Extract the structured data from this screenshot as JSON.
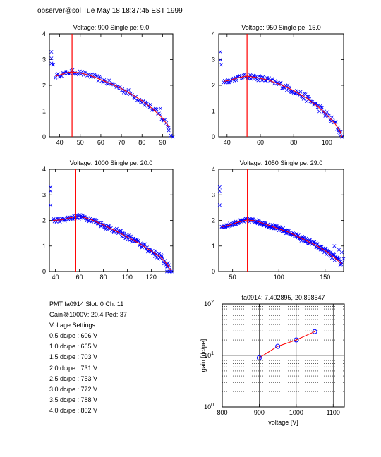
{
  "header": "observer@sol  Tue May 18 18:37:45 EST 1999",
  "info": {
    "pmt_line": "PMT fa0914 Slot: 0 Ch: 11",
    "gain_line": "Gain@1000V: 20.4 Ped: 37",
    "settings_title": "Voltage Settings",
    "settings": [
      "0.5 dc/pe : 606 V",
      "1.0 dc/pe : 665 V",
      "1.5 dc/pe : 703 V",
      "2.0 dc/pe : 731 V",
      "2.5 dc/pe : 753 V",
      "3.0 dc/pe : 772 V",
      "3.5 dc/pe : 788 V",
      "4.0 dc/pe : 802 V"
    ]
  },
  "colors": {
    "data": "#0000ff",
    "fit": "#ff0000",
    "axis": "#000000"
  },
  "chart_data": [
    {
      "type": "scatter",
      "title": "Voltage: 900 Single pe: 9.0",
      "xlabel": "",
      "ylabel": "",
      "xlim": [
        35,
        95
      ],
      "ylim": [
        0,
        4
      ],
      "xticks": [
        40,
        50,
        60,
        70,
        80,
        90
      ],
      "yticks": [
        0,
        1,
        2,
        3,
        4
      ],
      "peak_line_x": 46,
      "fit": [
        [
          38,
          2.35
        ],
        [
          40,
          2.4
        ],
        [
          43,
          2.48
        ],
        [
          46,
          2.52
        ],
        [
          50,
          2.48
        ],
        [
          55,
          2.38
        ],
        [
          60,
          2.22
        ],
        [
          65,
          2.06
        ],
        [
          70,
          1.87
        ],
        [
          75,
          1.65
        ],
        [
          80,
          1.4
        ],
        [
          85,
          1.1
        ],
        [
          90,
          0.72
        ],
        [
          93,
          0.4
        ]
      ],
      "outliers": [
        [
          36,
          3.3
        ],
        [
          36,
          3.05
        ],
        [
          36,
          2.85
        ],
        [
          36.5,
          2.8
        ],
        [
          37,
          2.8
        ],
        [
          89,
          1.1
        ],
        [
          93,
          0.25
        ],
        [
          94,
          0.05
        ],
        [
          95,
          0.0
        ]
      ],
      "noise": 0.07
    },
    {
      "type": "scatter",
      "title": "Voltage: 950 Single pe: 15.0",
      "xlabel": "",
      "ylabel": "",
      "xlim": [
        35,
        110
      ],
      "ylim": [
        0,
        4
      ],
      "xticks": [
        40,
        60,
        80,
        100
      ],
      "yticks": [
        0,
        1,
        2,
        3,
        4
      ],
      "peak_line_x": 52,
      "fit": [
        [
          38,
          2.15
        ],
        [
          42,
          2.2
        ],
        [
          47,
          2.3
        ],
        [
          52,
          2.36
        ],
        [
          58,
          2.3
        ],
        [
          65,
          2.2
        ],
        [
          72,
          2.03
        ],
        [
          80,
          1.8
        ],
        [
          88,
          1.5
        ],
        [
          95,
          1.15
        ],
        [
          100,
          0.85
        ],
        [
          105,
          0.5
        ],
        [
          108,
          0.2
        ],
        [
          109,
          0.0
        ]
      ],
      "outliers": [
        [
          36,
          3.3
        ],
        [
          36,
          3.0
        ],
        [
          36.5,
          2.8
        ],
        [
          107,
          0.25
        ],
        [
          108,
          0.05
        ],
        [
          109,
          0.0
        ]
      ],
      "noise": 0.08
    },
    {
      "type": "scatter",
      "title": "Voltage: 1000 Single pe: 20.0",
      "xlabel": "",
      "ylabel": "",
      "xlim": [
        35,
        138
      ],
      "ylim": [
        0,
        4
      ],
      "xticks": [
        40,
        60,
        80,
        100,
        120
      ],
      "yticks": [
        0,
        1,
        2,
        3,
        4
      ],
      "peak_line_x": 57,
      "fit": [
        [
          38,
          2.0
        ],
        [
          45,
          2.02
        ],
        [
          52,
          2.1
        ],
        [
          57,
          2.15
        ],
        [
          63,
          2.13
        ],
        [
          70,
          2.03
        ],
        [
          80,
          1.82
        ],
        [
          90,
          1.6
        ],
        [
          100,
          1.35
        ],
        [
          110,
          1.1
        ],
        [
          120,
          0.8
        ],
        [
          128,
          0.55
        ],
        [
          133,
          0.3
        ],
        [
          136,
          0.05
        ]
      ],
      "outliers": [
        [
          36,
          3.3
        ],
        [
          36,
          3.15
        ],
        [
          36,
          2.6
        ],
        [
          133,
          0.0
        ],
        [
          135,
          0.0
        ],
        [
          137,
          0.0
        ]
      ],
      "noise": 0.07
    },
    {
      "type": "scatter",
      "title": "Voltage: 1050 Single pe: 29.0",
      "xlabel": "",
      "ylabel": "",
      "xlim": [
        35,
        170
      ],
      "ylim": [
        0,
        4
      ],
      "xticks": [
        50,
        100,
        150
      ],
      "yticks": [
        0,
        1,
        2,
        3,
        4
      ],
      "peak_line_x": 66,
      "fit": [
        [
          38,
          1.75
        ],
        [
          45,
          1.8
        ],
        [
          55,
          1.92
        ],
        [
          66,
          2.02
        ],
        [
          75,
          1.98
        ],
        [
          90,
          1.8
        ],
        [
          100,
          1.67
        ],
        [
          110,
          1.55
        ],
        [
          120,
          1.38
        ],
        [
          130,
          1.2
        ],
        [
          140,
          1.03
        ],
        [
          150,
          0.82
        ],
        [
          160,
          0.55
        ],
        [
          168,
          0.3
        ]
      ],
      "outliers": [
        [
          36,
          3.3
        ],
        [
          36,
          3.15
        ],
        [
          36,
          2.6
        ],
        [
          160,
          1.0
        ],
        [
          165,
          0.85
        ],
        [
          168,
          0.75
        ],
        [
          170,
          0.5
        ]
      ],
      "noise": 0.06
    },
    {
      "type": "line",
      "title": "fa0914: 7.402895,-20.898547",
      "xlabel": "voltage [V]",
      "ylabel": "gain [dc/pe]",
      "xlim": [
        800,
        1130
      ],
      "ylim": [
        1,
        100
      ],
      "yscale": "log",
      "grid": true,
      "xticks": [
        800,
        900,
        1000,
        1100
      ],
      "x": [
        900,
        950,
        1000,
        1050
      ],
      "y": [
        9.0,
        15.0,
        20.0,
        29.0
      ]
    }
  ]
}
